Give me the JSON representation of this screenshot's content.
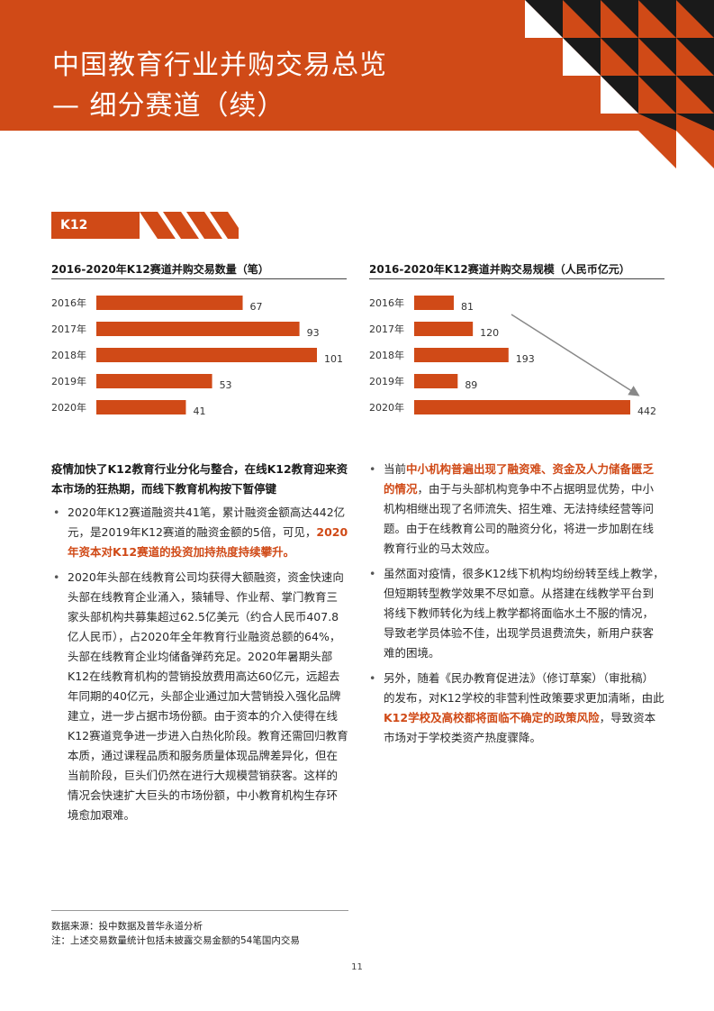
{
  "header": {
    "title_line1": "中国教育行业并购交易总览",
    "title_line2": "— 细分赛道（续）",
    "accent_color": "#d04a17"
  },
  "section": {
    "tab_label": "K12"
  },
  "chart_data": [
    {
      "type": "bar",
      "orientation": "horizontal",
      "title": "2016-2020年K12赛道并购交易数量（笔）",
      "categories": [
        "2016年",
        "2017年",
        "2018年",
        "2019年",
        "2020年"
      ],
      "values": [
        67,
        93,
        101,
        53,
        41
      ],
      "xlim": [
        0,
        101
      ],
      "color": "#d04a17"
    },
    {
      "type": "bar",
      "orientation": "horizontal",
      "title": "2016-2020年K12赛道并购交易规模（人民币亿元）",
      "categories": [
        "2016年",
        "2017年",
        "2018年",
        "2019年",
        "2020年"
      ],
      "values": [
        81,
        120,
        193,
        89,
        442
      ],
      "xlim": [
        0,
        442
      ],
      "color": "#d04a17",
      "annotation": "trend-arrow"
    }
  ],
  "left_col": {
    "lead": "疫情加快了K12教育行业分化与整合，在线K12教育迎来资本市场的狂热期，而线下教育机构按下暂停键",
    "b1_text": "2020年K12赛道融资共41笔，累计融资金额高达442亿元，是2019年K12赛道的融资金额的5倍，可见，",
    "b1_hl": "2020年资本对K12赛道的投资加持热度持续攀升。",
    "b2_text": "2020年头部在线教育公司均获得大额融资，资金快速向头部在线教育企业涌入，猿辅导、作业帮、掌门教育三家头部机构共募集超过62.5亿美元（约合人民币407.8亿人民币），占2020年全年教育行业融资总额的64%，头部在线教育企业均储备弹药充足。2020年暑期头部K12在线教育机构的营销投放费用高达60亿元，远超去年同期的40亿元，头部企业通过加大营销投入强化品牌建立，进一步占据市场份额。由于资本的介入使得在线K12赛道竞争进一步进入白热化阶段。教育还需回归教育本质，通过课程品质和服务质量体现品牌差异化，但在当前阶段，巨头们仍然在进行大规模营销获客。这样的情况会快速扩大巨头的市场份额，中小教育机构生存环境愈加艰难。"
  },
  "right_col": {
    "b1_pre": "当前",
    "b1_hl": "中小机构普遍出现了融资难、资金及人力储备匮乏的情况",
    "b1_post": "，由于与头部机构竞争中不占据明显优势，中小机构相继出现了名师流失、招生难、无法持续经营等问题。由于在线教育公司的融资分化，将进一步加剧在线教育行业的马太效应。",
    "b2_text": "虽然面对疫情，很多K12线下机构均纷纷转至线上教学，但短期转型教学效果不尽如意。从搭建在线教学平台到将线下教师转化为线上教学都将面临水土不服的情况，导致老学员体验不佳，出现学员退费流失，新用户获客难的困境。",
    "b3_pre": "另外，随着《民办教育促进法》（修订草案）（审批稿）的发布，对K12学校的非营利性政策要求更加清晰，由此",
    "b3_hl": "K12学校及高校都将面临不确定的政策风险",
    "b3_post": "，导致资本市场对于学校类资产热度骤降。"
  },
  "footnote": {
    "line1": "数据来源：投中数据及普华永道分析",
    "line2": "注：上述交易数量统计包括未披露交易金额的54笔国内交易"
  },
  "page_number": "11"
}
